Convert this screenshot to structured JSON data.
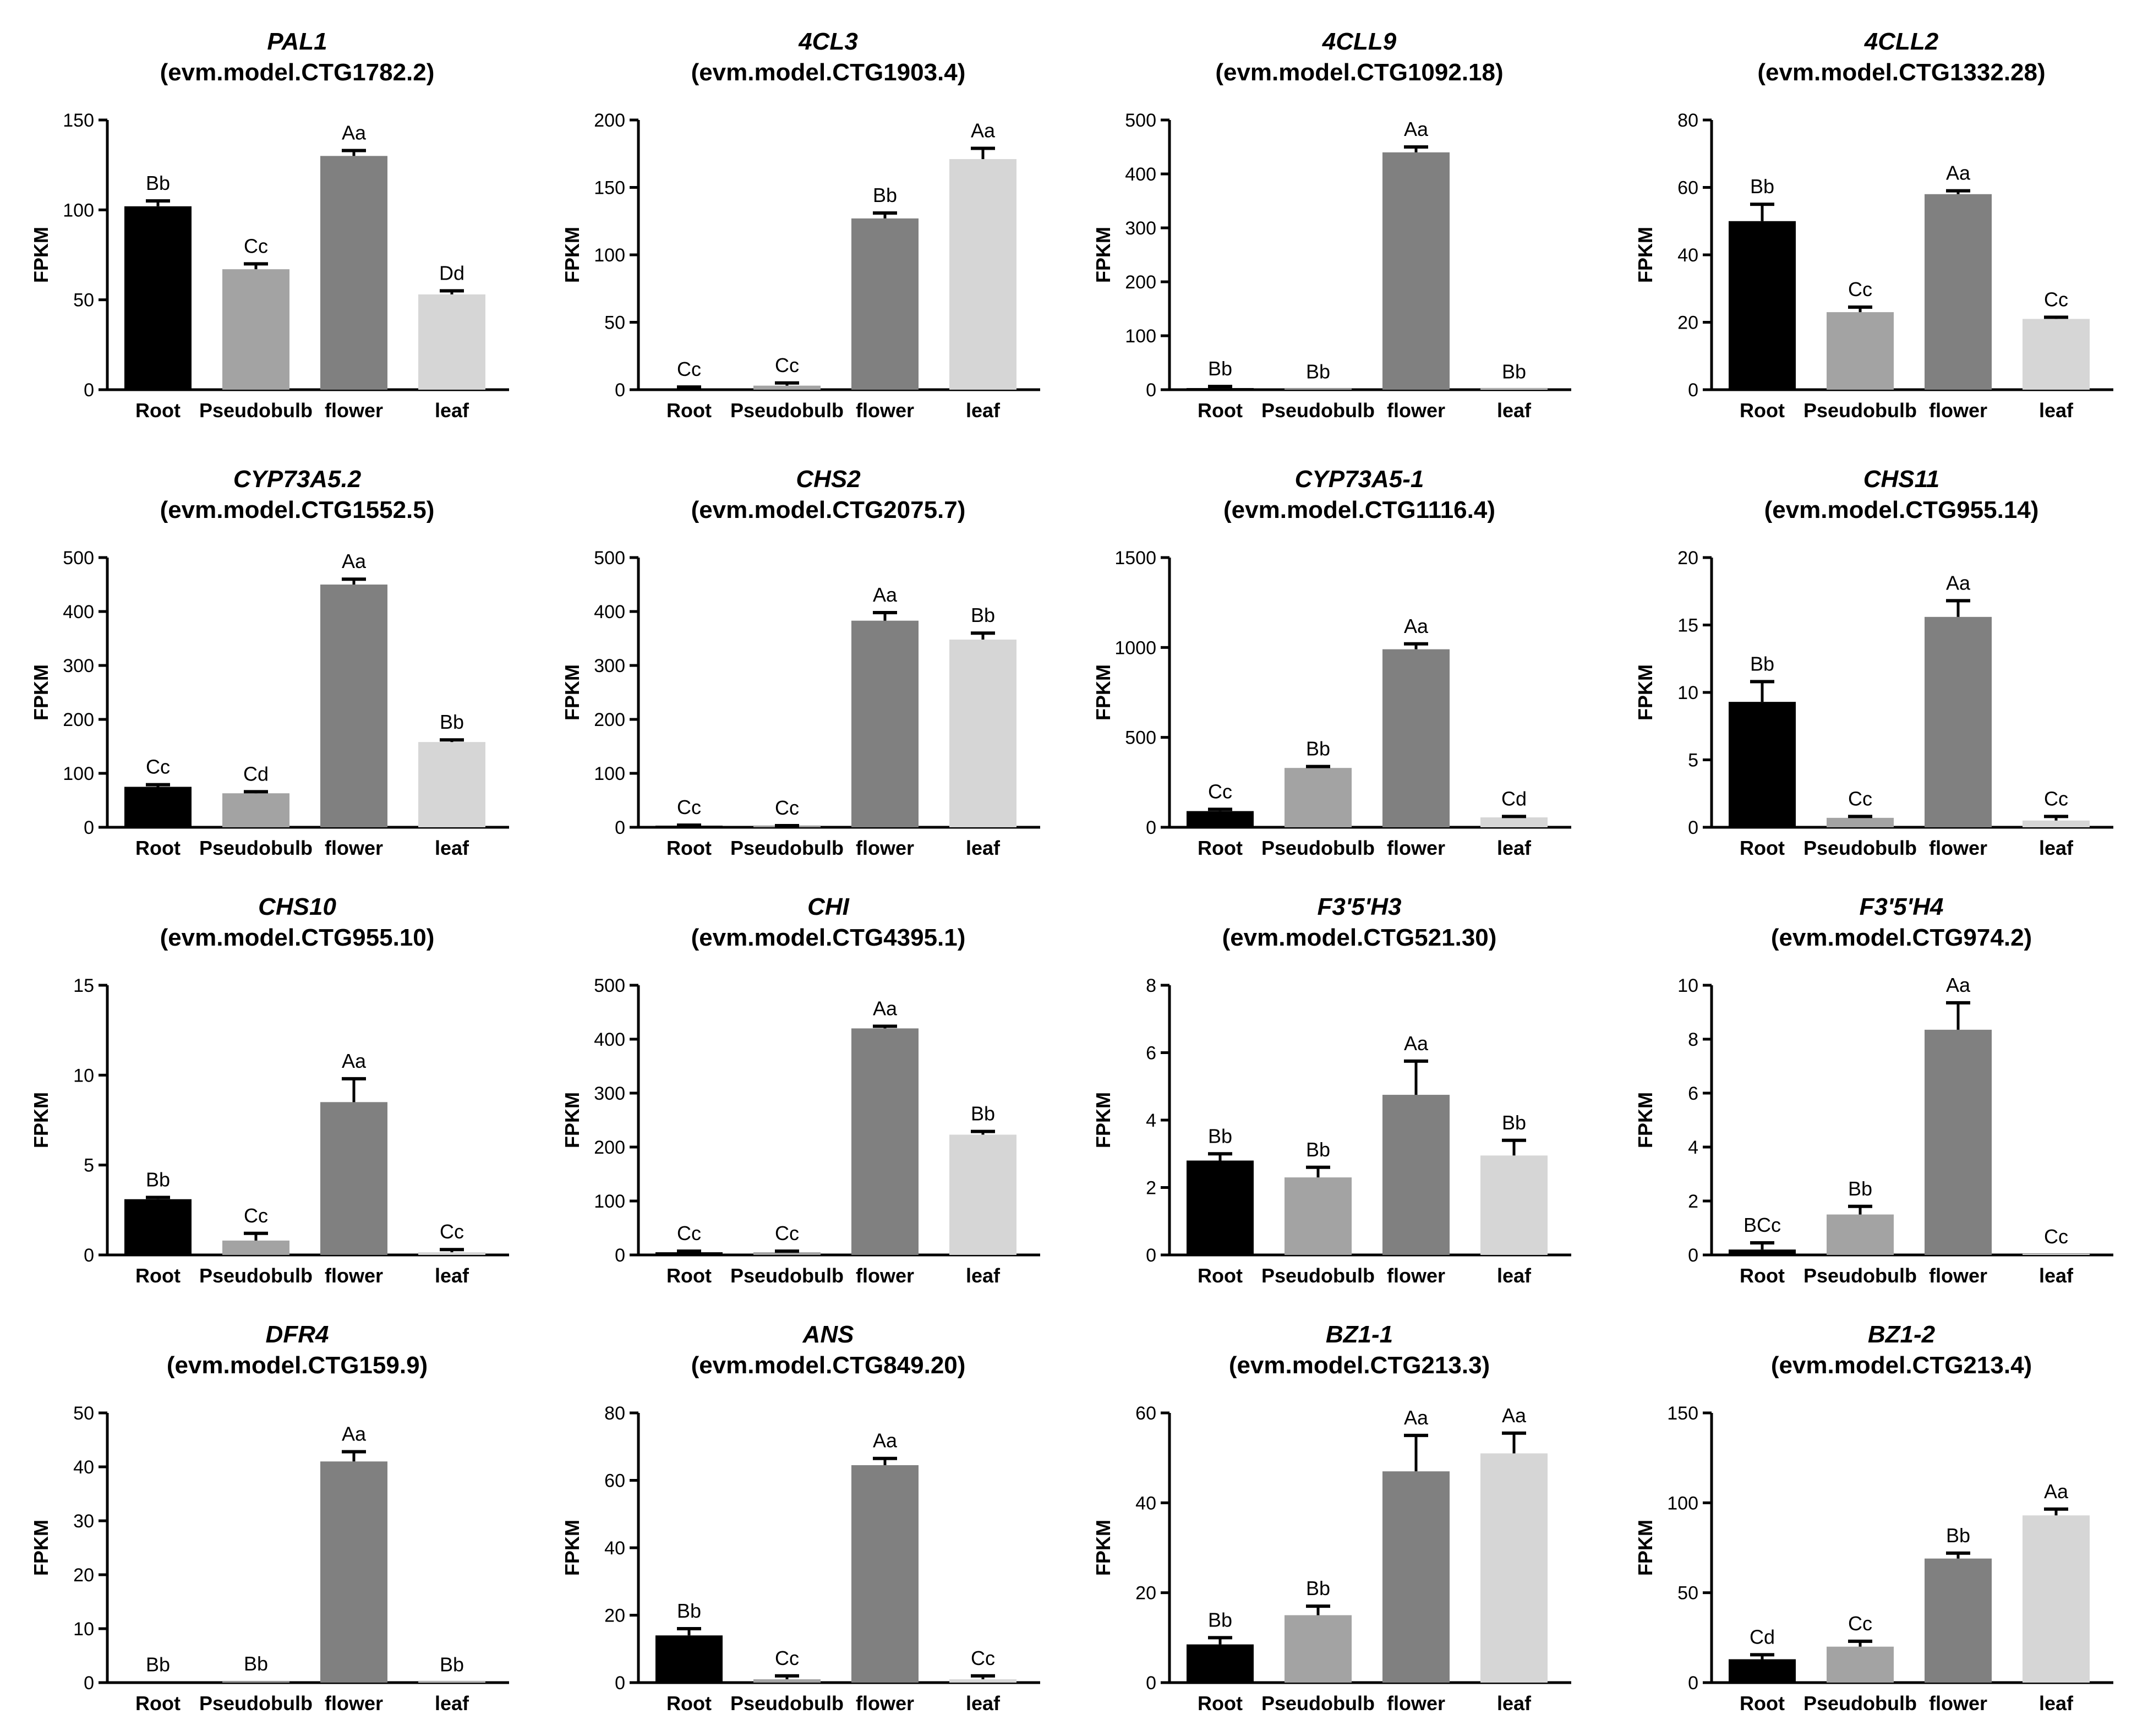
{
  "colors": {
    "Root": "#000000",
    "Pseudobulb": "#a3a3a3",
    "flower": "#808080",
    "leaf": "#d6d6d6",
    "axis": "#000000"
  },
  "chart_data": [
    {
      "type": "bar",
      "gene": "PAL1",
      "title": "(evm.model.CTG1782.2)",
      "ylabel": "FPKM",
      "categories": [
        "Root",
        "Pseudobulb",
        "flower",
        "leaf"
      ],
      "values": [
        102,
        67,
        130,
        53
      ],
      "errors": [
        3,
        3,
        3,
        2
      ],
      "labels": [
        "Bb",
        "Cc",
        "Aa",
        "Dd"
      ],
      "ylim": [
        0,
        150
      ],
      "yticks": [
        0,
        50,
        100,
        150
      ]
    },
    {
      "type": "bar",
      "gene": "4CL3",
      "title": "(evm.model.CTG1903.4)",
      "ylabel": "FPKM",
      "categories": [
        "Root",
        "Pseudobulb",
        "flower",
        "leaf"
      ],
      "values": [
        1,
        3,
        127,
        171
      ],
      "errors": [
        1,
        2,
        4,
        8
      ],
      "labels": [
        "Cc",
        "Cc",
        "Bb",
        "Aa"
      ],
      "ylim": [
        0,
        200
      ],
      "yticks": [
        0,
        50,
        100,
        150,
        200
      ]
    },
    {
      "type": "bar",
      "gene": "4CLL9",
      "title": "(evm.model.CTG1092.18)",
      "ylabel": "FPKM",
      "categories": [
        "Root",
        "Pseudobulb",
        "flower",
        "leaf"
      ],
      "values": [
        3,
        0.5,
        440,
        0.5
      ],
      "errors": [
        3,
        0,
        10,
        0
      ],
      "labels": [
        "Bb",
        "Bb",
        "Aa",
        "Bb"
      ],
      "ylim": [
        0,
        500
      ],
      "yticks": [
        0,
        100,
        200,
        300,
        400,
        500
      ]
    },
    {
      "type": "bar",
      "gene": "4CLL2",
      "title": "(evm.model.CTG1332.28)",
      "ylabel": "FPKM",
      "categories": [
        "Root",
        "Pseudobulb",
        "flower",
        "leaf"
      ],
      "values": [
        50,
        23,
        58,
        21
      ],
      "errors": [
        5,
        1.5,
        1,
        0.5
      ],
      "labels": [
        "Bb",
        "Cc",
        "Aa",
        "Cc"
      ],
      "ylim": [
        0,
        80
      ],
      "yticks": [
        0,
        20,
        40,
        60,
        80
      ]
    },
    {
      "type": "bar",
      "gene": "CYP73A5.2",
      "title": "(evm.model.CTG1552.5)",
      "ylabel": "FPKM",
      "categories": [
        "Root",
        "Pseudobulb",
        "flower",
        "leaf"
      ],
      "values": [
        75,
        63,
        450,
        158
      ],
      "errors": [
        4,
        3,
        10,
        4
      ],
      "labels": [
        "Cc",
        "Cd",
        "Aa",
        "Bb"
      ],
      "ylim": [
        0,
        500
      ],
      "yticks": [
        0,
        100,
        200,
        300,
        400,
        500
      ]
    },
    {
      "type": "bar",
      "gene": "CHS2",
      "title": "(evm.model.CTG2075.7)",
      "ylabel": "FPKM",
      "categories": [
        "Root",
        "Pseudobulb",
        "flower",
        "leaf"
      ],
      "values": [
        3,
        2,
        383,
        348
      ],
      "errors": [
        1,
        1,
        15,
        12
      ],
      "labels": [
        "Cc",
        "Cc",
        "Aa",
        "Bb"
      ],
      "ylim": [
        0,
        500
      ],
      "yticks": [
        0,
        100,
        200,
        300,
        400,
        500
      ]
    },
    {
      "type": "bar",
      "gene": "CYP73A5-1",
      "title": "(evm.model.CTG1116.4)",
      "ylabel": "FPKM",
      "categories": [
        "Root",
        "Pseudobulb",
        "flower",
        "leaf"
      ],
      "values": [
        90,
        330,
        990,
        55
      ],
      "errors": [
        10,
        8,
        30,
        5
      ],
      "labels": [
        "Cc",
        "Bb",
        "Aa",
        "Cd"
      ],
      "ylim": [
        0,
        1500
      ],
      "yticks": [
        0,
        500,
        1000,
        1500
      ]
    },
    {
      "type": "bar",
      "gene": "CHS11",
      "title": "(evm.model.CTG955.14)",
      "ylabel": "FPKM",
      "categories": [
        "Root",
        "Pseudobulb",
        "flower",
        "leaf"
      ],
      "values": [
        9.3,
        0.7,
        15.6,
        0.5
      ],
      "errors": [
        1.5,
        0.1,
        1.2,
        0.3
      ],
      "labels": [
        "Bb",
        "Cc",
        "Aa",
        "Cc"
      ],
      "ylim": [
        0,
        20
      ],
      "yticks": [
        0,
        5,
        10,
        15,
        20
      ]
    },
    {
      "type": "bar",
      "gene": "CHS10",
      "title": "(evm.model.CTG955.10)",
      "ylabel": "FPKM",
      "categories": [
        "Root",
        "Pseudobulb",
        "flower",
        "leaf"
      ],
      "values": [
        3.1,
        0.8,
        8.5,
        0.15
      ],
      "errors": [
        0.1,
        0.4,
        1.3,
        0.15
      ],
      "labels": [
        "Bb",
        "Cc",
        "Aa",
        "Cc"
      ],
      "ylim": [
        0,
        15
      ],
      "yticks": [
        0,
        5,
        10,
        15
      ]
    },
    {
      "type": "bar",
      "gene": "CHI",
      "title": "(evm.model.CTG4395.1)",
      "ylabel": "FPKM",
      "categories": [
        "Root",
        "Pseudobulb",
        "flower",
        "leaf"
      ],
      "values": [
        5,
        5,
        420,
        223
      ],
      "errors": [
        2,
        2,
        4,
        6
      ],
      "labels": [
        "Cc",
        "Cc",
        "Aa",
        "Bb"
      ],
      "ylim": [
        0,
        500
      ],
      "yticks": [
        0,
        100,
        200,
        300,
        400,
        500
      ]
    },
    {
      "type": "bar",
      "gene": "F3'5'H3",
      "title": "(evm.model.CTG521.30)",
      "ylabel": "FPKM",
      "categories": [
        "Root",
        "Pseudobulb",
        "flower",
        "leaf"
      ],
      "values": [
        2.8,
        2.3,
        4.75,
        2.95
      ],
      "errors": [
        0.2,
        0.3,
        1.0,
        0.45
      ],
      "labels": [
        "Bb",
        "Bb",
        "Aa",
        "Bb"
      ],
      "ylim": [
        0,
        8
      ],
      "yticks": [
        0,
        2,
        4,
        6,
        8
      ]
    },
    {
      "type": "bar",
      "gene": "F3'5'H4",
      "title": "(evm.model.CTG974.2)",
      "ylabel": "FPKM",
      "categories": [
        "Root",
        "Pseudobulb",
        "flower",
        "leaf"
      ],
      "values": [
        0.2,
        1.5,
        8.35,
        0.02
      ],
      "errors": [
        0.25,
        0.3,
        1.0,
        0
      ],
      "labels": [
        "BCc",
        "Bb",
        "Aa",
        "Cc"
      ],
      "ylim": [
        0,
        10
      ],
      "yticks": [
        0,
        2,
        4,
        6,
        8,
        10
      ]
    },
    {
      "type": "bar",
      "gene": "DFR4",
      "title": "(evm.model.CTG159.9)",
      "ylabel": "FPKM",
      "categories": [
        "Root",
        "Pseudobulb",
        "flower",
        "leaf"
      ],
      "values": [
        0.05,
        0.2,
        41,
        0.05
      ],
      "errors": [
        0,
        0,
        1.8,
        0
      ],
      "labels": [
        "Bb",
        "Bb",
        "Aa",
        "Bb"
      ],
      "ylim": [
        0,
        50
      ],
      "yticks": [
        0,
        10,
        20,
        30,
        40,
        50
      ]
    },
    {
      "type": "bar",
      "gene": "ANS",
      "title": "(evm.model.CTG849.20)",
      "ylabel": "FPKM",
      "categories": [
        "Root",
        "Pseudobulb",
        "flower",
        "leaf"
      ],
      "values": [
        14,
        1,
        64.5,
        1
      ],
      "errors": [
        2,
        1,
        2,
        1
      ],
      "labels": [
        "Bb",
        "Cc",
        "Aa",
        "Cc"
      ],
      "ylim": [
        0,
        80
      ],
      "yticks": [
        0,
        20,
        40,
        60,
        80
      ]
    },
    {
      "type": "bar",
      "gene": "BZ1-1",
      "title": "(evm.model.CTG213.3)",
      "ylabel": "FPKM",
      "categories": [
        "Root",
        "Pseudobulb",
        "flower",
        "leaf"
      ],
      "values": [
        8.5,
        15,
        47,
        51
      ],
      "errors": [
        1.5,
        2,
        8,
        4.5
      ],
      "labels": [
        "Bb",
        "Bb",
        "Aa",
        "Aa"
      ],
      "ylim": [
        0,
        60
      ],
      "yticks": [
        0,
        20,
        40,
        60
      ]
    },
    {
      "type": "bar",
      "gene": "BZ1-2",
      "title": "(evm.model.CTG213.4)",
      "ylabel": "FPKM",
      "categories": [
        "Root",
        "Pseudobulb",
        "flower",
        "leaf"
      ],
      "values": [
        13,
        20,
        69,
        93
      ],
      "errors": [
        2.5,
        3,
        3,
        3.5
      ],
      "labels": [
        "Cd",
        "Cc",
        "Bb",
        "Aa"
      ],
      "ylim": [
        0,
        150
      ],
      "yticks": [
        0,
        50,
        100,
        150
      ]
    }
  ]
}
